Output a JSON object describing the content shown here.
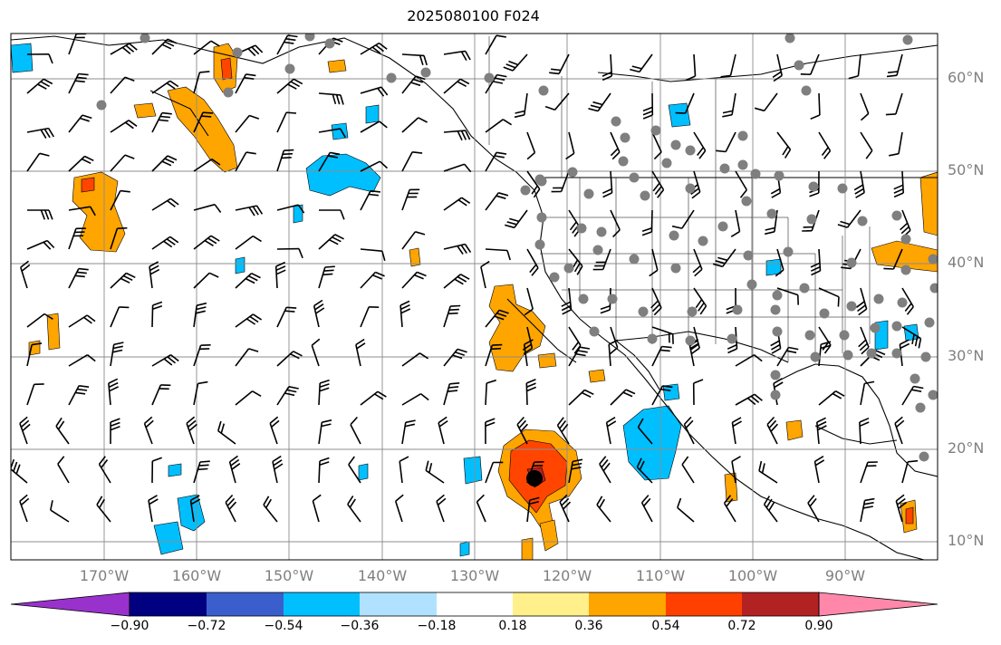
{
  "title": "2025080100 F024",
  "lat_labels": [
    "60°N",
    "50°N",
    "40°N",
    "30°N",
    "20°N",
    "10°N"
  ],
  "lon_labels": [
    "170°W",
    "160°W",
    "150°W",
    "140°W",
    "130°W",
    "120°W",
    "110°W",
    "100°W",
    "90°W"
  ],
  "colorbar": {
    "ticks": [
      "−0.90",
      "−0.72",
      "−0.54",
      "−0.36",
      "−0.18",
      "0.18",
      "0.36",
      "0.54",
      "0.72",
      "0.90"
    ],
    "colors": [
      "#9932cc",
      "#000080",
      "#3a5fcd",
      "#00bfff",
      "#b0e2ff",
      "#ffffff",
      "#fff08c",
      "#ffa500",
      "#ff4000",
      "#b22222",
      "#ff88aa"
    ]
  },
  "fill_colors": {
    "orange": "#ffa500",
    "red": "#ff4500",
    "dark_red": "#b22222",
    "cyan": "#00bfff",
    "light_blue": "#b0e2ff",
    "yellow": "#fff08c",
    "pink": "#ff88aa"
  },
  "storm_marker": "storm-center-icon"
}
